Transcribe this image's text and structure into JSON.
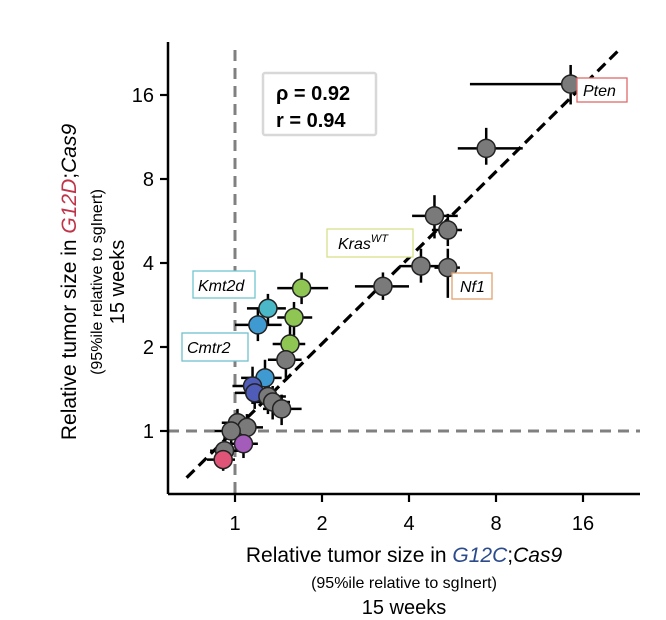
{
  "chart_data": {
    "type": "scatter",
    "scale": "log2",
    "xlim": [
      0.6,
      24
    ],
    "ylim": [
      0.6,
      24
    ],
    "x_ticks": [
      1,
      2,
      4,
      8,
      16
    ],
    "x_tick_labels": [
      "1",
      "2",
      "4",
      "8",
      "16"
    ],
    "y_ticks": [
      1,
      2,
      4,
      8,
      16
    ],
    "y_tick_labels": [
      "1",
      "2",
      "4",
      "8",
      "16"
    ],
    "xlabel": {
      "prefix": "Relative tumor size in ",
      "genotype": "G12C",
      "sep": ";",
      "cas": "Cas9",
      "line2": "(95%ile relative to sgInert)",
      "line3": "15 weeks"
    },
    "ylabel": {
      "prefix": "Relative tumor size in ",
      "genotype": "G12D",
      "sep": ";",
      "cas": "Cas9",
      "line2": "(95%ile relative to sgInert)",
      "line3": "15 weeks"
    },
    "colors": {
      "g12c": "#2b4b8c",
      "g12d": "#c0344a",
      "point_gray": "#7a7a7a",
      "ref_line": "#808080"
    },
    "reference_lines": {
      "x": 1,
      "y": 1
    },
    "fit_line": {
      "from": 0.85,
      "to": 20
    },
    "stats": {
      "rho": "ρ = 0.92",
      "r": "r = 0.94"
    },
    "points": [
      {
        "gene": "Pten",
        "x": 14.5,
        "y": 17.5,
        "xerr": [
          6.5,
          21
        ],
        "yerr": [
          14.8,
          20.5
        ],
        "color": "#7a7a7a"
      },
      {
        "gene": "",
        "x": 7.4,
        "y": 10.3,
        "xerr": [
          5.9,
          9.9
        ],
        "yerr": [
          9.0,
          12.2
        ],
        "color": "#7a7a7a"
      },
      {
        "gene": "",
        "x": 4.9,
        "y": 5.9,
        "xerr": [
          4.1,
          5.9
        ],
        "yerr": [
          4.9,
          7.0
        ],
        "color": "#7a7a7a"
      },
      {
        "gene": "",
        "x": 5.45,
        "y": 5.25,
        "xerr": [
          4.8,
          6.1
        ],
        "yerr": [
          4.6,
          6.0
        ],
        "color": "#7a7a7a"
      },
      {
        "gene": "",
        "x": 4.4,
        "y": 3.9,
        "xerr": [
          3.7,
          5.1
        ],
        "yerr": [
          3.4,
          4.5
        ],
        "color": "#7a7a7a"
      },
      {
        "gene": "Nf1",
        "x": 5.45,
        "y": 3.85,
        "xerr": [
          4.9,
          6.0
        ],
        "yerr": [
          3.0,
          4.5
        ],
        "color": "#7a7a7a"
      },
      {
        "gene": "Kras^WT",
        "x": 3.25,
        "y": 3.3,
        "xerr": [
          2.6,
          4.0
        ],
        "yerr": [
          2.95,
          3.7
        ],
        "color": "#7a7a7a"
      },
      {
        "gene": "",
        "x": 1.7,
        "y": 3.25,
        "xerr": [
          1.4,
          2.1
        ],
        "yerr": [
          2.85,
          3.7
        ],
        "color": "#8fc553"
      },
      {
        "gene": "Kmt2d",
        "x": 1.3,
        "y": 2.75,
        "xerr": [
          1.1,
          1.5
        ],
        "yerr": [
          2.4,
          3.1
        ],
        "color": "#4ab8c6"
      },
      {
        "gene": "",
        "x": 1.6,
        "y": 2.55,
        "xerr": [
          1.4,
          1.85
        ],
        "yerr": [
          2.2,
          2.9
        ],
        "color": "#8fc553"
      },
      {
        "gene": "Cmtr2",
        "x": 1.2,
        "y": 2.4,
        "xerr": [
          1.0,
          1.45
        ],
        "yerr": [
          2.1,
          2.75
        ],
        "color": "#3f9ad2"
      },
      {
        "gene": "",
        "x": 1.55,
        "y": 2.05,
        "xerr": [
          1.35,
          1.75
        ],
        "yerr": [
          1.7,
          2.4
        ],
        "color": "#8fc553"
      },
      {
        "gene": "",
        "x": 1.5,
        "y": 1.8,
        "xerr": [
          1.3,
          1.7
        ],
        "yerr": [
          1.55,
          2.1
        ],
        "color": "#7a7a7a"
      },
      {
        "gene": "",
        "x": 1.27,
        "y": 1.55,
        "xerr": [
          1.05,
          1.45
        ],
        "yerr": [
          1.35,
          1.8
        ],
        "color": "#3f9ad2"
      },
      {
        "gene": "",
        "x": 1.15,
        "y": 1.45,
        "xerr": [
          0.98,
          1.32
        ],
        "yerr": [
          1.25,
          1.7
        ],
        "color": "#4f5cb8"
      },
      {
        "gene": "",
        "x": 1.17,
        "y": 1.37,
        "xerr": [
          1.0,
          1.35
        ],
        "yerr": [
          1.2,
          1.55
        ],
        "color": "#4f5cb8"
      },
      {
        "gene": "",
        "x": 1.3,
        "y": 1.33,
        "xerr": [
          1.1,
          1.5
        ],
        "yerr": [
          1.15,
          1.5
        ],
        "color": "#7a7a7a"
      },
      {
        "gene": "",
        "x": 1.35,
        "y": 1.27,
        "xerr": [
          1.15,
          1.55
        ],
        "yerr": [
          1.1,
          1.45
        ],
        "color": "#7a7a7a"
      },
      {
        "gene": "",
        "x": 1.45,
        "y": 1.2,
        "xerr": [
          1.25,
          1.7
        ],
        "yerr": [
          1.05,
          1.35
        ],
        "color": "#7a7a7a"
      },
      {
        "gene": "",
        "x": 1.02,
        "y": 1.07,
        "xerr": [
          0.9,
          1.15
        ],
        "yerr": [
          0.95,
          1.2
        ],
        "color": "#7a7a7a"
      },
      {
        "gene": "",
        "x": 1.1,
        "y": 1.03,
        "xerr": [
          0.95,
          1.25
        ],
        "yerr": [
          0.9,
          1.15
        ],
        "color": "#7a7a7a"
      },
      {
        "gene": "",
        "x": 0.97,
        "y": 1.0,
        "xerr": [
          0.85,
          1.1
        ],
        "yerr": [
          0.88,
          1.12
        ],
        "color": "#7a7a7a"
      },
      {
        "gene": "",
        "x": 0.92,
        "y": 0.85,
        "xerr": [
          0.82,
          1.03
        ],
        "yerr": [
          0.77,
          0.95
        ],
        "color": "#7a7a7a"
      },
      {
        "gene": "",
        "x": 1.07,
        "y": 0.9,
        "xerr": [
          0.95,
          1.2
        ],
        "yerr": [
          0.8,
          1.0
        ],
        "color": "#a35cba"
      },
      {
        "gene": "",
        "x": 0.91,
        "y": 0.79,
        "xerr": [
          0.8,
          1.0
        ],
        "yerr": [
          0.72,
          0.87
        ],
        "color": "#e05577"
      }
    ],
    "annotations": [
      {
        "name": "pten",
        "text": "Pten",
        "sup": "",
        "border": "#e06a6a"
      },
      {
        "name": "nf1",
        "text": "Nf1",
        "sup": "",
        "border": "#e0a070"
      },
      {
        "name": "kras",
        "text": "Kras",
        "sup": "WT",
        "border": "#d8e08a"
      },
      {
        "name": "kmt2d",
        "text": "Kmt2d",
        "sup": "",
        "border": "#6fc6cf"
      },
      {
        "name": "cmtr2",
        "text": "Cmtr2",
        "sup": "",
        "border": "#6fbfd0"
      }
    ]
  }
}
